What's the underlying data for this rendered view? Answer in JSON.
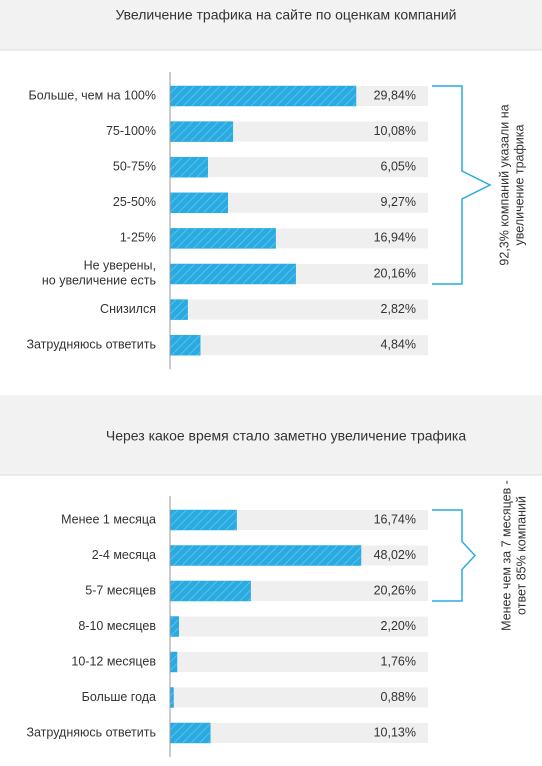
{
  "chart_data": [
    {
      "type": "bar",
      "title": "Увеличение трафика на сайте по оценкам компаний",
      "categories": [
        "Больше, чем на 100%",
        "75-100%",
        "50-75%",
        "25-50%",
        "1-25%",
        "Не уверены,\nно увеличение есть",
        "Снизился",
        "Затрудняюсь ответить"
      ],
      "values": [
        29.84,
        10.08,
        6.05,
        9.27,
        16.94,
        20.16,
        2.82,
        4.84
      ],
      "value_labels": [
        "29,84%",
        "10,08%",
        "6,05%",
        "9,27%",
        "16,94%",
        "20,16%",
        "2,82%",
        "4,84%"
      ],
      "color": "#29abe2",
      "annotation": "92,3% компаний указали на\nувеличение трафика"
    },
    {
      "type": "bar",
      "title": "Через какое время стало заметно увеличение трафика",
      "categories": [
        "Менее 1 месяца",
        "2-4 месяца",
        "5-7 месяцев",
        "8-10 месяцев",
        "10-12 месяцев",
        "Больше года",
        "Затрудняюсь ответить"
      ],
      "values": [
        16.74,
        48.02,
        20.26,
        2.2,
        1.76,
        0.88,
        10.13
      ],
      "value_labels": [
        "16,74%",
        "48,02%",
        "20,26%",
        "2,20%",
        "1,76%",
        "0,88%",
        "10,13%"
      ],
      "color": "#29abe2",
      "annotation": "Менее чем за 7 месяцев -\nответ 85% компаний"
    }
  ]
}
